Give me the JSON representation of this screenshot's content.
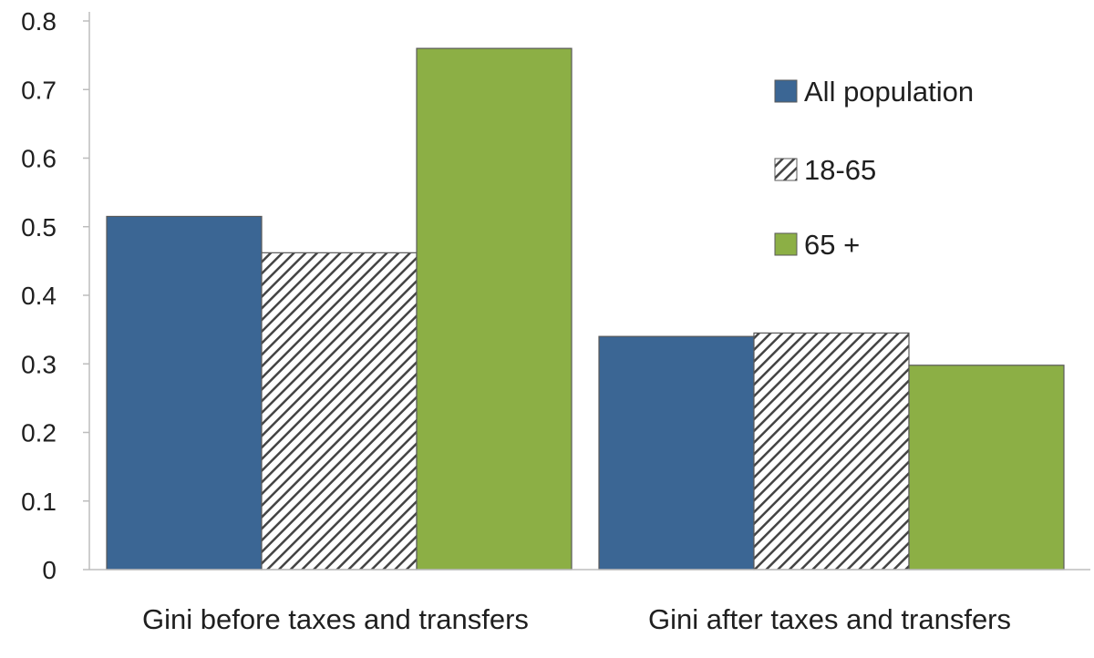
{
  "chart_data": {
    "type": "bar",
    "title": "",
    "xlabel": "",
    "ylabel": "",
    "ylim": [
      0,
      0.8
    ],
    "yticks": [
      0,
      0.1,
      0.2,
      0.3,
      0.4,
      0.5,
      0.6,
      0.7,
      0.8
    ],
    "ytick_labels": [
      "0",
      "0.1",
      "0.2",
      "0.3",
      "0.4",
      "0.5",
      "0.6",
      "0.7",
      "0.8"
    ],
    "categories": [
      "Gini before taxes and transfers",
      "Gini after taxes and transfers"
    ],
    "series": [
      {
        "name": "All population",
        "values": [
          0.515,
          0.34
        ],
        "color": "#3b6694",
        "pattern": "solid"
      },
      {
        "name": "18-65",
        "values": [
          0.462,
          0.345
        ],
        "color": "#ffffff",
        "pattern": "diagonal-hatch"
      },
      {
        "name": "65 +",
        "values": [
          0.76,
          0.298
        ],
        "color": "#8caf45",
        "pattern": "solid"
      }
    ],
    "grid": false,
    "legend": {
      "position": "top-right"
    }
  }
}
